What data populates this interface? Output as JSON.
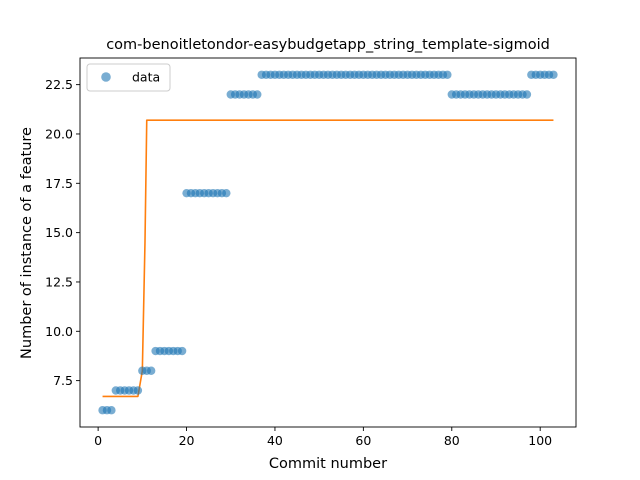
{
  "chart_data": {
    "type": "scatter",
    "title": "com-benoitletondor-easybudgetapp_string_template-sigmoid",
    "xlabel": "Commit number",
    "ylabel": "Number of instance of a feature",
    "xlim": [
      -4.1,
      108.1
    ],
    "ylim": [
      5.15,
      23.85
    ],
    "x_ticks": [
      0,
      20,
      40,
      60,
      80,
      100
    ],
    "y_ticks": [
      7.5,
      10.0,
      12.5,
      15.0,
      17.5,
      20.0,
      22.5
    ],
    "y_tick_labels": [
      "7.5",
      "10.0",
      "12.5",
      "15.0",
      "17.5",
      "20.0",
      "22.5"
    ],
    "grid": false,
    "legend": {
      "position": "top-left",
      "entries": [
        "data"
      ]
    },
    "colors": {
      "data": "#1f77b4",
      "fit": "#ff7f0e"
    },
    "series": [
      {
        "name": "data",
        "kind": "scatter",
        "x": [
          1,
          2,
          3,
          4,
          5,
          6,
          7,
          8,
          9,
          10,
          11,
          12,
          13,
          14,
          15,
          16,
          17,
          18,
          19,
          20,
          21,
          22,
          23,
          24,
          25,
          26,
          27,
          28,
          29,
          30,
          31,
          32,
          33,
          34,
          35,
          36,
          37,
          38,
          39,
          40,
          41,
          42,
          43,
          44,
          45,
          46,
          47,
          48,
          49,
          50,
          51,
          52,
          53,
          54,
          55,
          56,
          57,
          58,
          59,
          60,
          61,
          62,
          63,
          64,
          65,
          66,
          67,
          68,
          69,
          70,
          71,
          72,
          73,
          74,
          75,
          76,
          77,
          78,
          79,
          80,
          81,
          82,
          83,
          84,
          85,
          86,
          87,
          88,
          89,
          90,
          91,
          92,
          93,
          94,
          95,
          96,
          97,
          98,
          99,
          100,
          101,
          102,
          103
        ],
        "y": [
          6,
          6,
          6,
          7,
          7,
          7,
          7,
          7,
          7,
          8,
          8,
          8,
          9,
          9,
          9,
          9,
          9,
          9,
          9,
          17,
          17,
          17,
          17,
          17,
          17,
          17,
          17,
          17,
          17,
          22,
          22,
          22,
          22,
          22,
          22,
          22,
          23,
          23,
          23,
          23,
          23,
          23,
          23,
          23,
          23,
          23,
          23,
          23,
          23,
          23,
          23,
          23,
          23,
          23,
          23,
          23,
          23,
          23,
          23,
          23,
          23,
          23,
          23,
          23,
          23,
          23,
          23,
          23,
          23,
          23,
          23,
          23,
          23,
          23,
          23,
          23,
          23,
          23,
          23,
          22,
          22,
          22,
          22,
          22,
          22,
          22,
          22,
          22,
          22,
          22,
          22,
          22,
          22,
          22,
          22,
          22,
          22,
          23,
          23,
          23,
          23,
          23,
          23
        ]
      },
      {
        "name": "",
        "kind": "line",
        "x": [
          1,
          9,
          10,
          10.6,
          11,
          103
        ],
        "y": [
          6.7,
          6.7,
          8.0,
          14.5,
          20.7,
          20.7
        ]
      }
    ]
  }
}
